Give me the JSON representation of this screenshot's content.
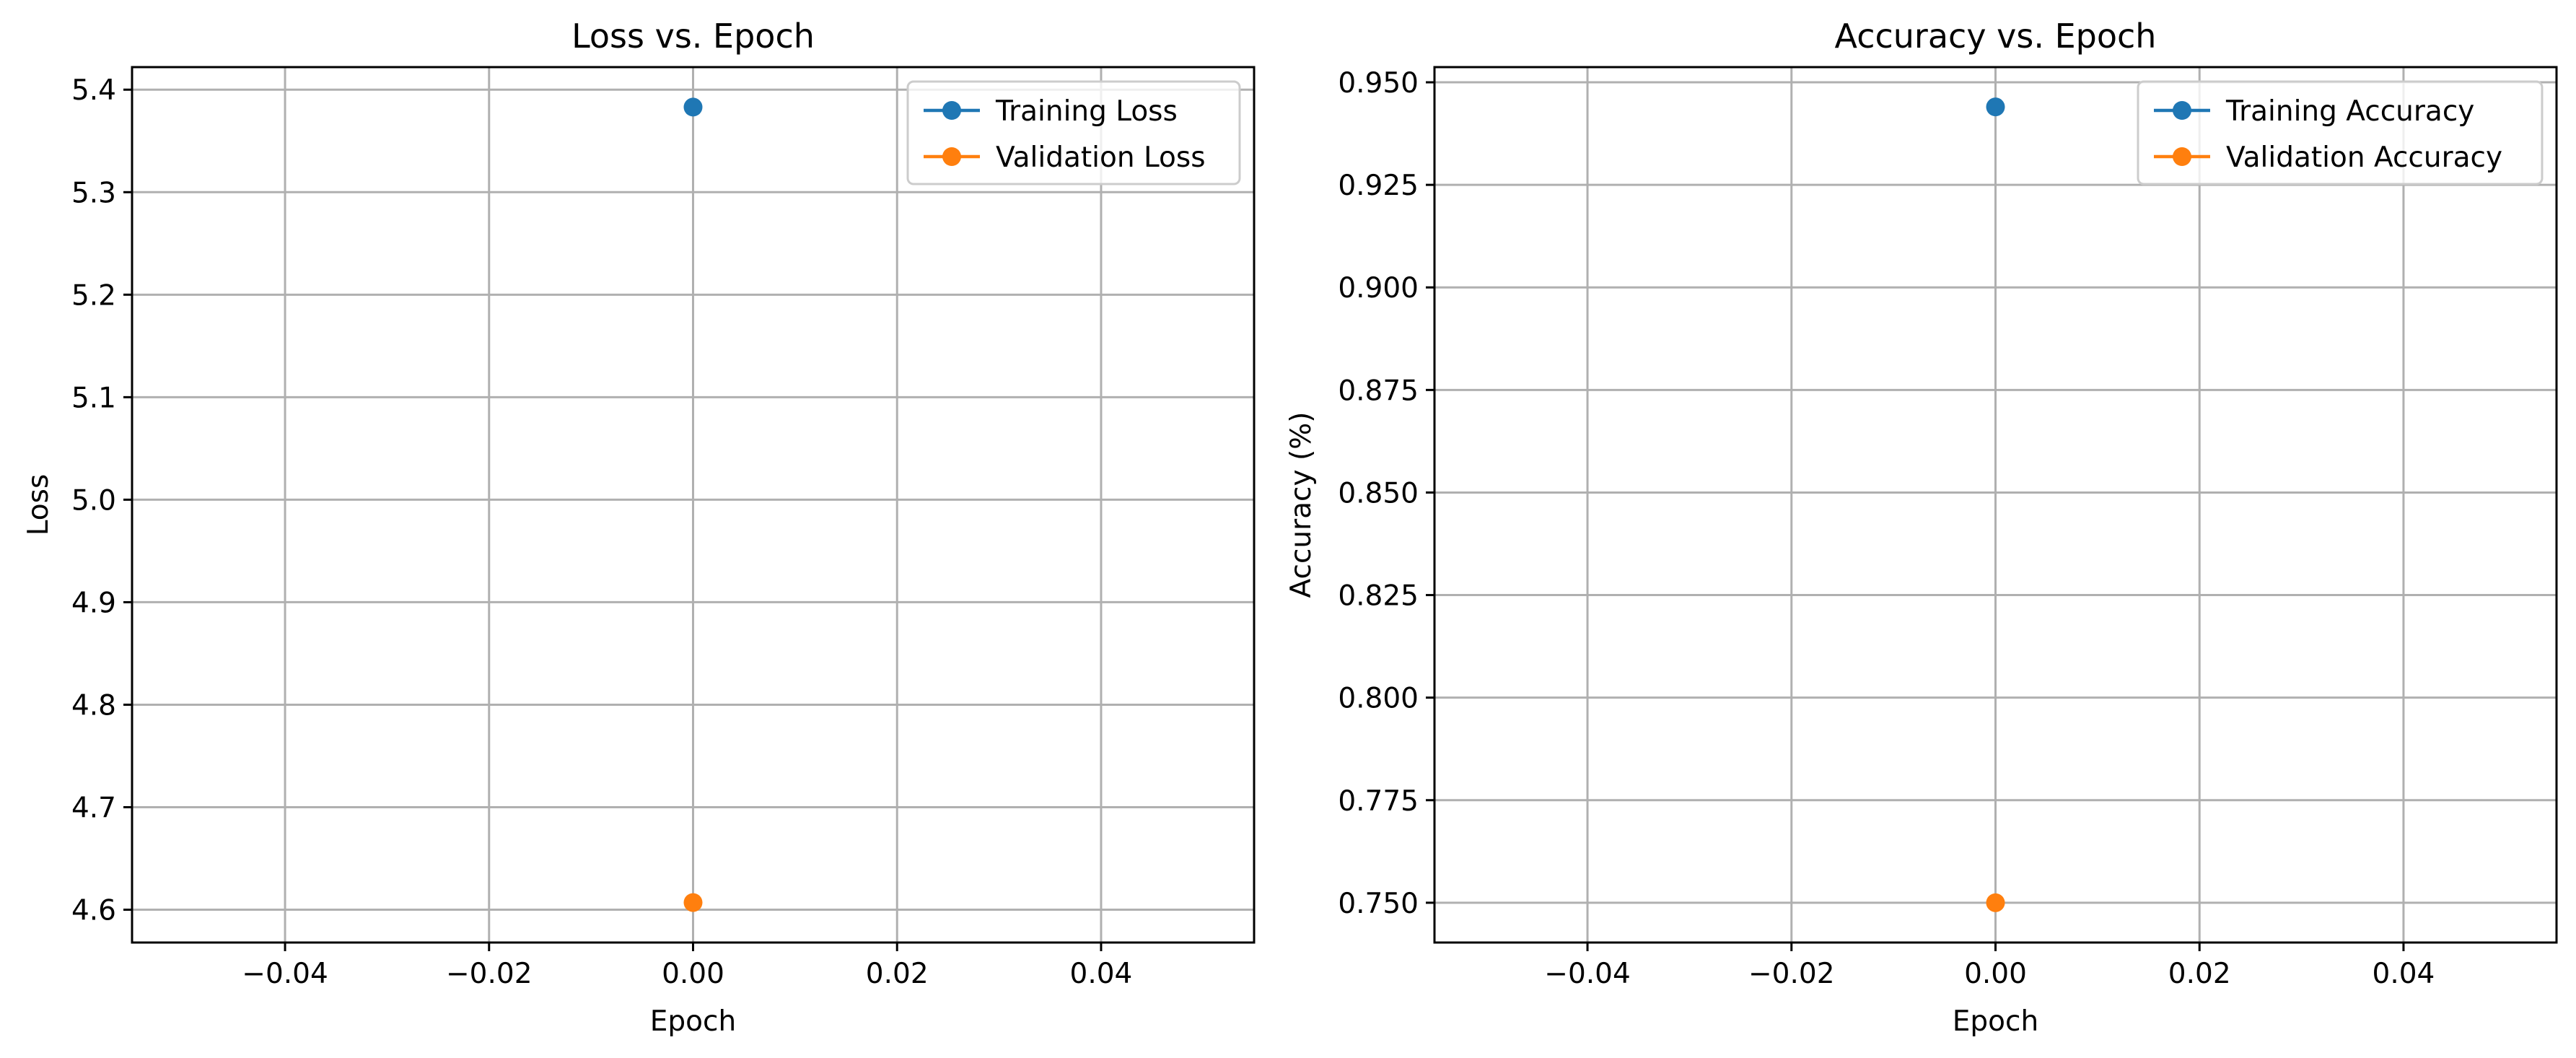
{
  "chart_data": [
    {
      "type": "scatter",
      "title": "Loss vs. Epoch",
      "xlabel": "Epoch",
      "ylabel": "Loss",
      "xlim": [
        -0.055,
        0.055
      ],
      "ylim": [
        4.568,
        5.422
      ],
      "xticks": [
        -0.04,
        -0.02,
        0.0,
        0.02,
        0.04
      ],
      "xtick_labels": [
        "−0.04",
        "−0.02",
        "0.00",
        "0.02",
        "0.04"
      ],
      "yticks": [
        4.6,
        4.7,
        4.8,
        4.9,
        5.0,
        5.1,
        5.2,
        5.3,
        5.4
      ],
      "ytick_labels": [
        "4.6",
        "4.7",
        "4.8",
        "4.9",
        "5.0",
        "5.1",
        "5.2",
        "5.3",
        "5.4"
      ],
      "grid": true,
      "legend_position": "top-right",
      "series": [
        {
          "name": "Training Loss",
          "color": "#1f77b4",
          "x": [
            0
          ],
          "y": [
            5.383
          ]
        },
        {
          "name": "Validation Loss",
          "color": "#ff7f0e",
          "x": [
            0
          ],
          "y": [
            4.607
          ]
        }
      ]
    },
    {
      "type": "scatter",
      "title": "Accuracy vs. Epoch",
      "xlabel": "Epoch",
      "ylabel": "Accuracy (%)",
      "xlim": [
        -0.055,
        0.055
      ],
      "ylim": [
        0.7403,
        0.9537
      ],
      "xticks": [
        -0.04,
        -0.02,
        0.0,
        0.02,
        0.04
      ],
      "xtick_labels": [
        "−0.04",
        "−0.02",
        "0.00",
        "0.02",
        "0.04"
      ],
      "yticks": [
        0.75,
        0.775,
        0.8,
        0.825,
        0.85,
        0.875,
        0.9,
        0.925,
        0.95
      ],
      "ytick_labels": [
        "0.750",
        "0.775",
        "0.800",
        "0.825",
        "0.850",
        "0.875",
        "0.900",
        "0.925",
        "0.950"
      ],
      "grid": true,
      "legend_position": "top-right",
      "series": [
        {
          "name": "Training Accuracy",
          "color": "#1f77b4",
          "x": [
            0
          ],
          "y": [
            0.944
          ]
        },
        {
          "name": "Validation Accuracy",
          "color": "#ff7f0e",
          "x": [
            0
          ],
          "y": [
            0.75
          ]
        }
      ]
    }
  ]
}
